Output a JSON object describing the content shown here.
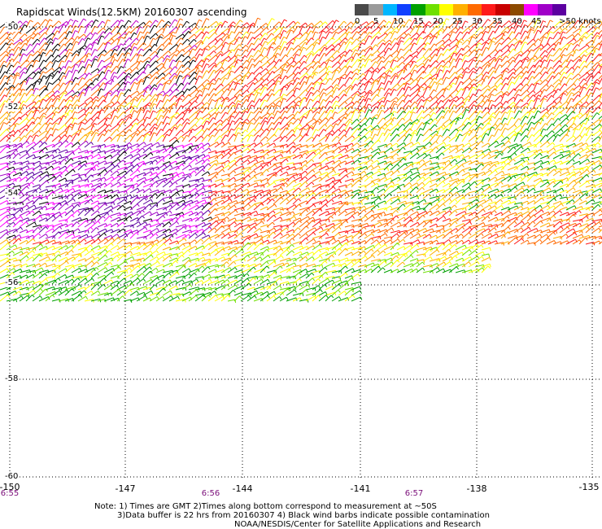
{
  "title": "Rapidscat Winds(12.5KM) 20160307 ascending",
  "colorbar": {
    "colors": [
      "#4a4a4a",
      "#9a9a9a",
      "#00b6ff",
      "#1040ff",
      "#00a000",
      "#6ee000",
      "#ffff00",
      "#ffb000",
      "#ff6a00",
      "#ff1a1a",
      "#c80000",
      "#8c4a00",
      "#ff00ff",
      "#a000c8",
      "#5c00a0"
    ],
    "labels": [
      "0",
      "5",
      "10",
      "15",
      "20",
      "25",
      "30",
      "35",
      "40",
      "45",
      ">50 knots"
    ]
  },
  "map": {
    "lon_labels": [
      "-150",
      "-147",
      "-144",
      "-141",
      "-138",
      "-135"
    ],
    "lat_labels": [
      "-50",
      "-52",
      "-54",
      "-56",
      "-58",
      "-60"
    ],
    "time_labels": [
      "6:55",
      "6:56",
      "6:57"
    ]
  },
  "notes": {
    "line1": "Note: 1) Times are GMT 2)Times along bottom correspond to measurement at ~50S",
    "line2": "3)Data buffer is 22 hrs from 20160307 4) Black wind barbs indicate possible contamination",
    "line3": "NOAA/NESDIS/Center for Satellite Applications and Research"
  }
}
